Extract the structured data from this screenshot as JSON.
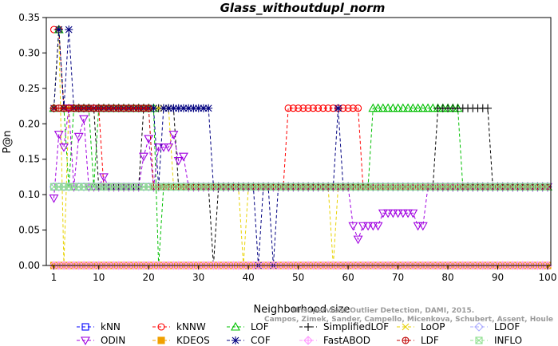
{
  "chart_data": {
    "type": "line",
    "title": "Glass_withoutdupl_norm",
    "xlabel": "Neighborhood size",
    "ylabel": "P@n",
    "xlim": [
      1,
      100
    ],
    "ylim": [
      0,
      0.35
    ],
    "xticks": [
      "1",
      "10",
      "20",
      "30",
      "40",
      "50",
      "60",
      "70",
      "80",
      "90",
      "100"
    ],
    "yticks": [
      "0.00",
      "0.05",
      "0.10",
      "0.15",
      "0.20",
      "0.25",
      "0.30",
      "0.35"
    ],
    "legend_position": "bottom",
    "grid": false,
    "series": [
      {
        "name": "kNN",
        "color": "#0000ff",
        "marker": "square",
        "points": [
          [
            1,
            0.111
          ],
          [
            100,
            0.111
          ]
        ]
      },
      {
        "name": "kNNW",
        "color": "#ff0000",
        "marker": "circle",
        "points": [
          [
            1,
            0.333
          ],
          [
            2,
            0.333
          ],
          [
            3,
            0.222
          ],
          [
            10,
            0.222
          ],
          [
            11,
            0.111
          ],
          [
            47,
            0.111
          ],
          [
            48,
            0.222
          ],
          [
            62,
            0.222
          ],
          [
            63,
            0.111
          ],
          [
            100,
            0.111
          ]
        ]
      },
      {
        "name": "LOF",
        "color": "#00c000",
        "marker": "triangle-up",
        "points": [
          [
            1,
            0.222
          ],
          [
            2,
            0.333
          ],
          [
            3,
            0.222
          ],
          [
            4,
            0.111
          ],
          [
            5,
            0.222
          ],
          [
            8,
            0.222
          ],
          [
            9,
            0.111
          ],
          [
            10,
            0.222
          ],
          [
            21,
            0.222
          ],
          [
            22,
            0.0
          ],
          [
            23,
            0.111
          ],
          [
            64,
            0.111
          ],
          [
            65,
            0.222
          ],
          [
            82,
            0.222
          ],
          [
            83,
            0.111
          ],
          [
            100,
            0.111
          ]
        ]
      },
      {
        "name": "SimplifiedLOF",
        "color": "#000000",
        "marker": "plus",
        "points": [
          [
            1,
            0.222
          ],
          [
            2,
            0.333
          ],
          [
            3,
            0.222
          ],
          [
            9,
            0.222
          ],
          [
            10,
            0.111
          ],
          [
            18,
            0.111
          ],
          [
            19,
            0.222
          ],
          [
            25,
            0.222
          ],
          [
            26,
            0.111
          ],
          [
            32,
            0.111
          ],
          [
            33,
            0.0
          ],
          [
            34,
            0.111
          ],
          [
            77,
            0.111
          ],
          [
            78,
            0.222
          ],
          [
            88,
            0.222
          ],
          [
            89,
            0.111
          ],
          [
            100,
            0.111
          ]
        ]
      },
      {
        "name": "LoOP",
        "color": "#e8d200",
        "marker": "x",
        "points": [
          [
            1,
            0.222
          ],
          [
            2,
            0.333
          ],
          [
            3,
            0.0
          ],
          [
            4,
            0.222
          ],
          [
            24,
            0.222
          ],
          [
            25,
            0.111
          ],
          [
            38,
            0.111
          ],
          [
            39,
            0.0
          ],
          [
            40,
            0.111
          ],
          [
            56,
            0.111
          ],
          [
            57,
            0.0
          ],
          [
            58,
            0.111
          ],
          [
            100,
            0.111
          ]
        ]
      },
      {
        "name": "LDOF",
        "color": "#aaaaff",
        "marker": "diamond",
        "points": [
          [
            1,
            0.111
          ],
          [
            100,
            0.111
          ]
        ]
      },
      {
        "name": "ODIN",
        "color": "#a000e0",
        "marker": "triangle-down",
        "points": [
          [
            1,
            0.095
          ],
          [
            2,
            0.185
          ],
          [
            3,
            0.167
          ],
          [
            4,
            0.222
          ],
          [
            5,
            0.111
          ],
          [
            6,
            0.182
          ],
          [
            7,
            0.207
          ],
          [
            8,
            0.111
          ],
          [
            10,
            0.111
          ],
          [
            11,
            0.125
          ],
          [
            12,
            0.111
          ],
          [
            18,
            0.111
          ],
          [
            19,
            0.154
          ],
          [
            20,
            0.179
          ],
          [
            21,
            0.111
          ],
          [
            22,
            0.167
          ],
          [
            23,
            0.167
          ],
          [
            24,
            0.167
          ],
          [
            25,
            0.185
          ],
          [
            26,
            0.148
          ],
          [
            27,
            0.154
          ],
          [
            28,
            0.111
          ],
          [
            59,
            0.111
          ],
          [
            60,
            0.111
          ],
          [
            61,
            0.056
          ],
          [
            62,
            0.037
          ],
          [
            63,
            0.056
          ],
          [
            64,
            0.056
          ],
          [
            65,
            0.056
          ],
          [
            66,
            0.056
          ],
          [
            67,
            0.074
          ],
          [
            72,
            0.074
          ],
          [
            73,
            0.074
          ],
          [
            74,
            0.056
          ],
          [
            75,
            0.056
          ],
          [
            76,
            0.111
          ],
          [
            100,
            0.111
          ]
        ]
      },
      {
        "name": "KDEOS",
        "color": "#f0a000",
        "marker": "square-filled",
        "points": [
          [
            1,
            0.0
          ],
          [
            100,
            0.0
          ]
        ]
      },
      {
        "name": "COF",
        "color": "#000080",
        "marker": "asterisk",
        "points": [
          [
            1,
            0.222
          ],
          [
            2,
            0.333
          ],
          [
            3,
            0.222
          ],
          [
            4,
            0.333
          ],
          [
            5,
            0.222
          ],
          [
            21,
            0.222
          ],
          [
            22,
            0.111
          ],
          [
            23,
            0.222
          ],
          [
            32,
            0.222
          ],
          [
            33,
            0.111
          ],
          [
            41,
            0.111
          ],
          [
            42,
            0.0
          ],
          [
            43,
            0.111
          ],
          [
            44,
            0.111
          ],
          [
            45,
            0.0
          ],
          [
            46,
            0.111
          ],
          [
            57,
            0.111
          ],
          [
            58,
            0.222
          ],
          [
            59,
            0.111
          ],
          [
            100,
            0.111
          ]
        ]
      },
      {
        "name": "FastABOD",
        "color": "#ff99ff",
        "marker": "diamond-plus",
        "points": [
          [
            1,
            0.0
          ],
          [
            100,
            0.0
          ]
        ]
      },
      {
        "name": "LDF",
        "color": "#c00000",
        "marker": "circle-filled",
        "points": [
          [
            1,
            0.222
          ],
          [
            20,
            0.222
          ],
          [
            21,
            0.111
          ],
          [
            100,
            0.111
          ]
        ]
      },
      {
        "name": "INFLO",
        "color": "#90e090",
        "marker": "square-x",
        "points": [
          [
            1,
            0.111
          ],
          [
            100,
            0.111
          ]
        ]
      }
    ],
    "watermark": [
      "Campos, Zimek, Sander, Campello, Micenkova, Schubert, Assent, Houle",
      "Unsupervised Outlier Detection, DAMI, 2015."
    ]
  }
}
